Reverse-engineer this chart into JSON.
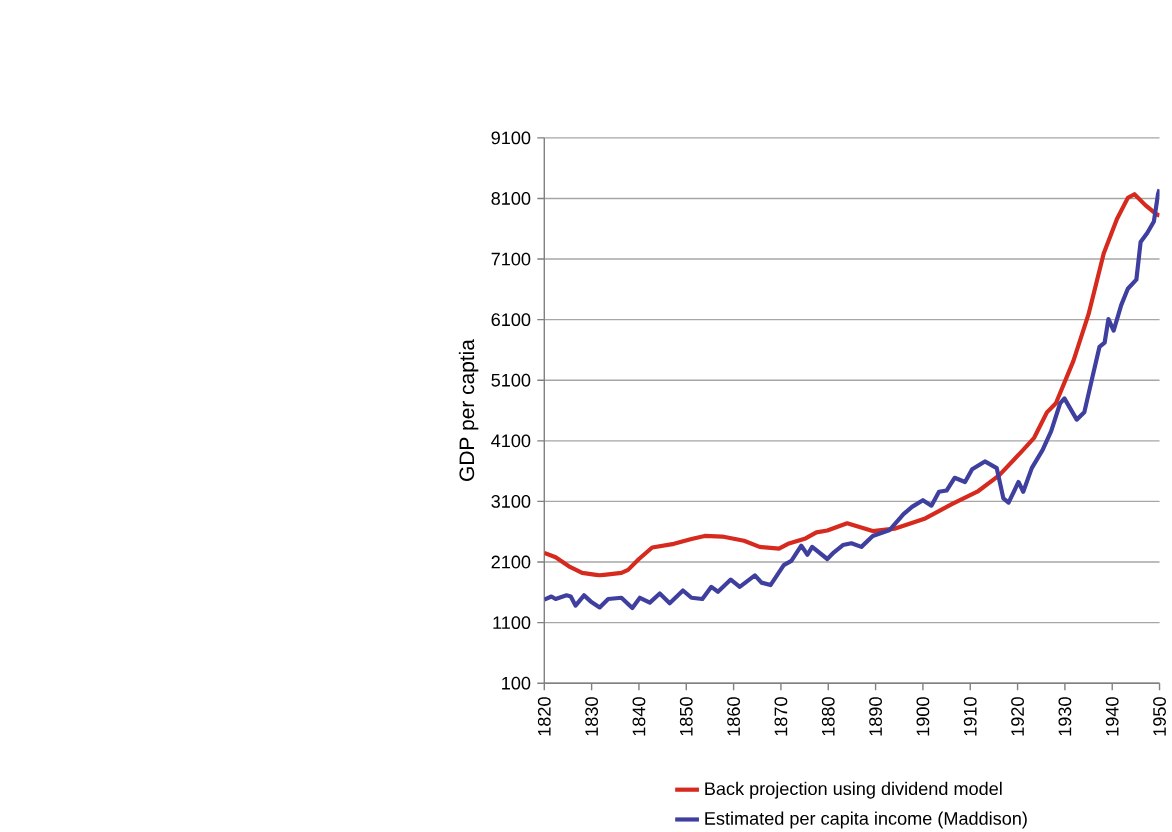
{
  "chart_data": {
    "type": "line",
    "ylabel": "GDP per captia",
    "xlim": [
      1820,
      1950
    ],
    "xticks": [
      1820,
      1830,
      1840,
      1850,
      1860,
      1870,
      1880,
      1890,
      1900,
      1910,
      1920,
      1930,
      1940,
      1950
    ],
    "ylim": [
      100,
      9100
    ],
    "yticks": [
      100,
      1100,
      2100,
      3100,
      4100,
      5100,
      6100,
      7100,
      8100,
      9100
    ],
    "grid": "y",
    "legend": "bottom",
    "marker": "none",
    "line_style": "solid",
    "series": [
      {
        "name": "Back projection using dividend model",
        "color": "#d62a1e",
        "x": [
          1820,
          1822.4,
          1825.2,
          1828,
          1831.7,
          1836.3,
          1837.7,
          1840,
          1842.8,
          1847.4,
          1851.1,
          1853.9,
          1857.6,
          1862.2,
          1865.5,
          1869.6,
          1871.5,
          1875.2,
          1877.5,
          1879.8,
          1884,
          1889.4,
          1894,
          1900.5,
          1906,
          1911.5,
          1916.1,
          1920.7,
          1923.5,
          1926.2,
          1928.1,
          1931.8,
          1935,
          1938.2,
          1941,
          1943.3,
          1944.7,
          1947,
          1949.3,
          1950
        ],
        "values": [
          2250,
          2180,
          2030,
          1920,
          1880,
          1920,
          1970,
          2150,
          2340,
          2400,
          2480,
          2530,
          2520,
          2450,
          2350,
          2320,
          2400,
          2490,
          2590,
          2620,
          2740,
          2610,
          2650,
          2820,
          3050,
          3260,
          3530,
          3910,
          4150,
          4570,
          4720,
          5420,
          6190,
          7190,
          7760,
          8110,
          8170,
          7990,
          7840,
          7820
        ]
      },
      {
        "name": "Estimated per capita income (Maddison)",
        "color": "#3f3fa0",
        "x": [
          1820,
          1821.5,
          1822.4,
          1824.7,
          1825.6,
          1826.6,
          1828.4,
          1829.8,
          1831.7,
          1833.5,
          1836.3,
          1838.6,
          1840.2,
          1842.3,
          1844.4,
          1846.5,
          1849.3,
          1851.1,
          1853.4,
          1855.3,
          1856.7,
          1859.4,
          1861.3,
          1864.5,
          1865.9,
          1867.8,
          1870.6,
          1872.2,
          1874.3,
          1875.6,
          1876.6,
          1879.8,
          1881.2,
          1883.1,
          1884.9,
          1887,
          1889.4,
          1893,
          1895.9,
          1897.7,
          1900,
          1901.8,
          1903.4,
          1905,
          1906.7,
          1908.9,
          1910.4,
          1913.1,
          1915.6,
          1917,
          1918.1,
          1920.2,
          1921.2,
          1923,
          1925.3,
          1927.1,
          1929,
          1929.9,
          1932.5,
          1934.1,
          1935.9,
          1937.3,
          1938.4,
          1939.2,
          1940.3,
          1941.9,
          1943.3,
          1945.1,
          1946,
          1947.4,
          1948.8,
          1949.7,
          1950
        ],
        "values": [
          1480,
          1530,
          1490,
          1550,
          1530,
          1380,
          1550,
          1450,
          1350,
          1490,
          1510,
          1340,
          1510,
          1430,
          1580,
          1420,
          1630,
          1510,
          1490,
          1690,
          1610,
          1810,
          1690,
          1880,
          1760,
          1720,
          2050,
          2120,
          2370,
          2220,
          2350,
          2150,
          2260,
          2380,
          2410,
          2350,
          2530,
          2630,
          2890,
          3010,
          3120,
          3030,
          3260,
          3280,
          3490,
          3420,
          3630,
          3760,
          3650,
          3150,
          3080,
          3420,
          3260,
          3650,
          3950,
          4260,
          4720,
          4800,
          4450,
          4570,
          5180,
          5650,
          5720,
          6110,
          5920,
          6340,
          6610,
          6760,
          7380,
          7530,
          7720,
          8180,
          8250
        ]
      }
    ]
  }
}
